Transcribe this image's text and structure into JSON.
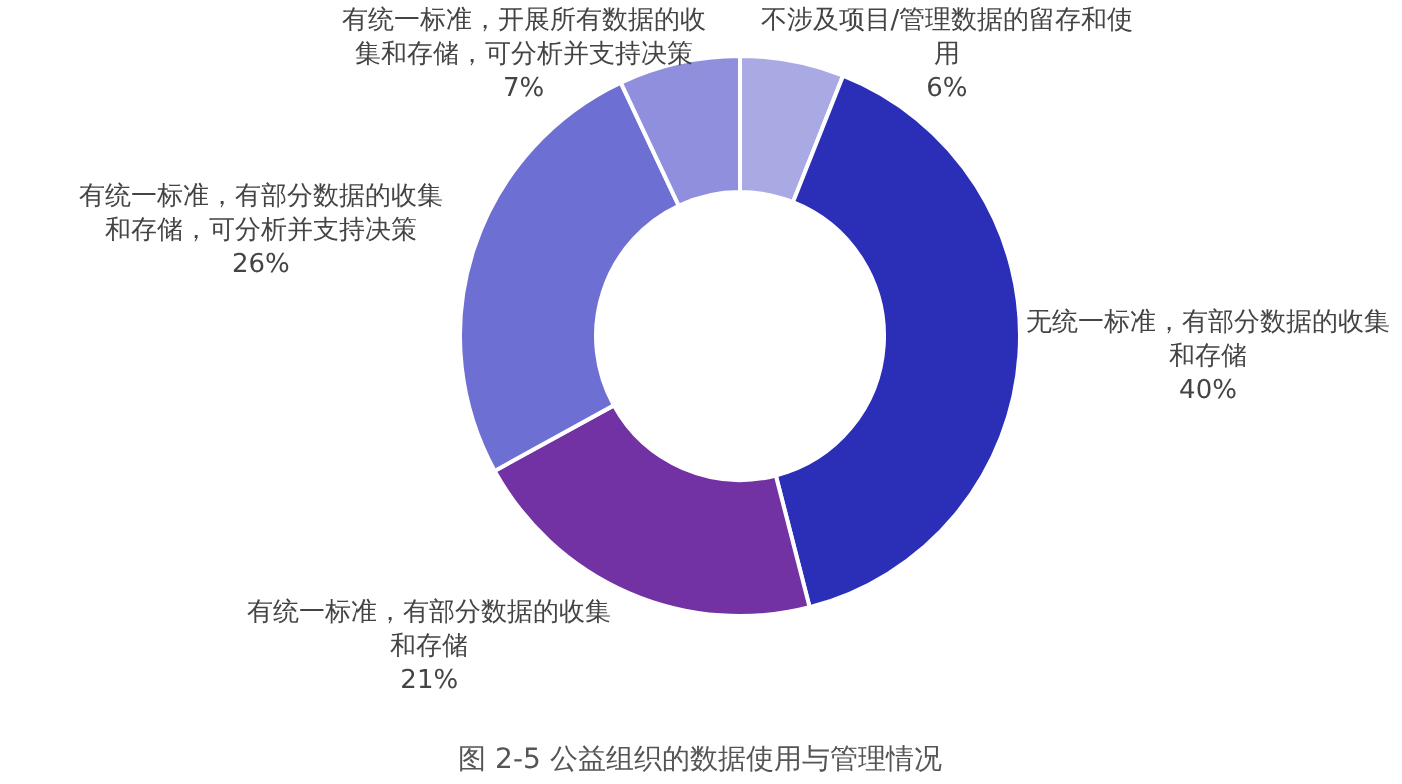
{
  "chart_data": {
    "type": "donut",
    "title": "图 2-5 公益组织的数据使用与管理情况",
    "categories": [
      "不涉及项目/管理数据的留存和使用",
      "无统一标准，有部分数据的收集和存储",
      "有统一标准，有部分数据的收集和存储",
      "有统一标准，有部分数据的收集和存储，可分析并支持决策",
      "有统一标准，开展所有数据的收集和存储，可分析并支持决策"
    ],
    "values": [
      6,
      40,
      21,
      26,
      7
    ],
    "colors": [
      "#a9a9e3",
      "#2b2fb8",
      "#7232a3",
      "#6d6fd3",
      "#8f8fdd"
    ],
    "value_labels": [
      "6%",
      "40%",
      "21%",
      "26%",
      "7%"
    ]
  }
}
